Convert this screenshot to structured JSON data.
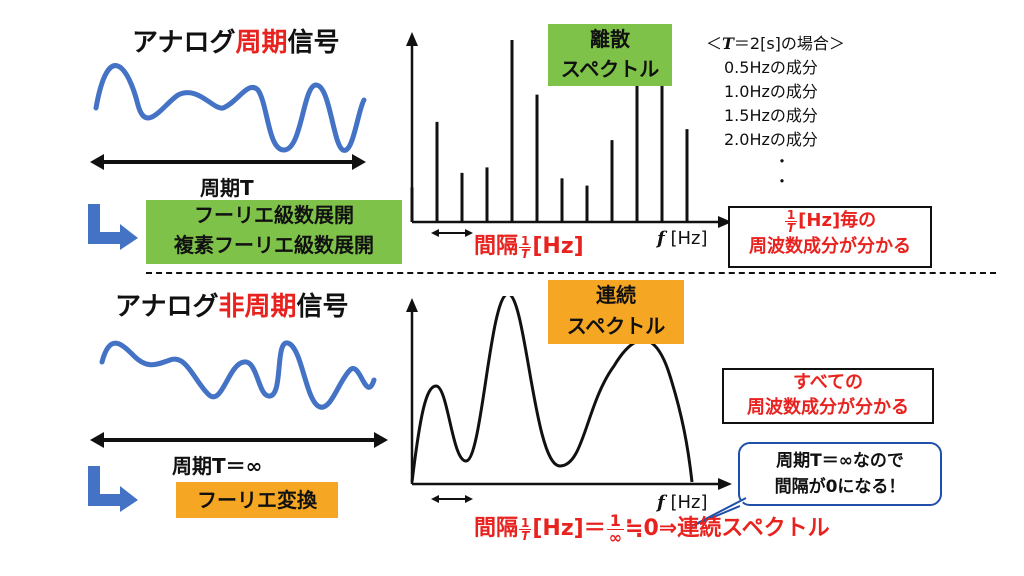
{
  "top": {
    "title_prefix": "アナログ",
    "title_highlight": "周期",
    "title_suffix": "信号",
    "period_label": "周期T",
    "fourier_box_line1": "フーリエ級数展開",
    "fourier_box_line2": "複素フーリエ級数展開",
    "spectrum_box_line1": "離散",
    "spectrum_box_line2": "スペクトル",
    "legend_header_open": "＜",
    "legend_header_T": "T",
    "legend_header_rest": "＝2[s]の場合＞",
    "legend_items": [
      "0.5Hzの成分",
      "1.0Hzの成分",
      "1.5Hzの成分",
      "2.0Hzの成分",
      "・",
      "・"
    ],
    "interval_label": "間隔",
    "frac_num": "1",
    "frac_den": "T",
    "interval_unit": "[Hz]",
    "axis_f": "f",
    "axis_unit": "[Hz]",
    "result_box_unit": "[Hz]毎の",
    "result_box_line2": "周波数成分が分かる",
    "spectrum_values": [
      0.19,
      0.55,
      0.27,
      0.3,
      1.0,
      0.7,
      0.24,
      0.2,
      0.45,
      0.75,
      0.83,
      0.51
    ],
    "colors": {
      "signal": "#4472c4",
      "green": "#7fc24a",
      "red": "#e8231f",
      "orange": "#f5a623"
    }
  },
  "bottom": {
    "title_prefix": "アナログ",
    "title_highlight": "非周期",
    "title_suffix": "信号",
    "period_label": "周期T＝∞",
    "fourier_box": "フーリエ変換",
    "spectrum_box_line1": "連続",
    "spectrum_box_line2": "スペクトル",
    "result_box_line1": "すべての",
    "result_box_line2": "周波数成分が分かる",
    "bubble_line1": "周期T＝∞なので",
    "bubble_line2": "間隔が0になる！",
    "interval_label": "間隔",
    "frac_num": "1",
    "frac_den": "T",
    "interval_unit": "[Hz]＝",
    "frac2_num": "1",
    "frac2_den": "∞",
    "tail": "≒0⇒連続スペクトル",
    "axis_f": "f",
    "axis_unit": "[Hz]"
  }
}
